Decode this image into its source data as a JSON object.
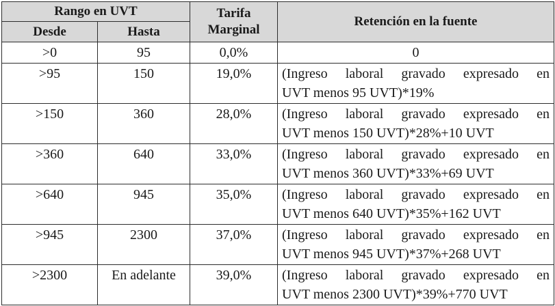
{
  "header": {
    "range_group": "Rango en UVT",
    "from": "Desde",
    "to": "Hasta",
    "rate_line1": "Tarifa",
    "rate_line2": "Marginal",
    "withholding": "Retención en la fuente"
  },
  "rows": [
    {
      "from": ">0",
      "to": "95",
      "rate": "0,0%",
      "formula_line1": "0",
      "formula_line2": ""
    },
    {
      "from": ">95",
      "to": "150",
      "rate": "19,0%",
      "formula_line1": "(Ingreso laboral gravado expresado en",
      "formula_line2": "UVT menos 95 UVT)*19%"
    },
    {
      "from": ">150",
      "to": "360",
      "rate": "28,0%",
      "formula_line1": "(Ingreso laboral gravado expresado en",
      "formula_line2": "UVT menos 150 UVT)*28%+10 UVT"
    },
    {
      "from": ">360",
      "to": "640",
      "rate": "33,0%",
      "formula_line1": "(Ingreso laboral gravado expresado en",
      "formula_line2": "UVT menos 360 UVT)*33%+69 UVT"
    },
    {
      "from": ">640",
      "to": "945",
      "rate": "35,0%",
      "formula_line1": "(Ingreso laboral gravado expresado en",
      "formula_line2": "UVT menos 640 UVT)*35%+162 UVT"
    },
    {
      "from": ">945",
      "to": "2300",
      "rate": "37,0%",
      "formula_line1": "(Ingreso laboral gravado expresado en",
      "formula_line2": "UVT menos 945 UVT)*37%+268 UVT"
    },
    {
      "from": ">2300",
      "to": "En adelante",
      "rate": "39,0%",
      "formula_line1": "(Ingreso laboral gravado expresado en",
      "formula_line2": "UVT menos 2300 UVT)*39%+770 UVT"
    }
  ]
}
